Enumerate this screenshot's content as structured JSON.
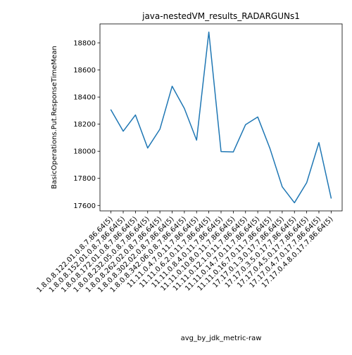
{
  "chart_data": {
    "type": "line",
    "title": "java-nestedVM_results_RADARGUNs1",
    "xlabel": "avg_by_jdk_metric-raw",
    "ylabel": "BasicOperations.Put.ResponseTimeMean",
    "categories": [
      "1.8.0.8.122.01.0.8.7.86.64(5)",
      "1.8.0.8.152.01.0.8.7.86.64(5)",
      "1.8.0.8.172.01.0.8.7.86.64(5)",
      "1.8.0.8.232.05.0.8.7.86.64(5)",
      "1.8.0.8.262.02.0.8.7.86.64(5)",
      "1.8.0.8.302.02.0.8.7.86.64(5)",
      "1.8.0.8.342.06.0.8.7.86.64(5)",
      "11.11.0.4.7.0.11.7.86.64(5)",
      "11.11.0.6.2.0.11.7.86.64(5)",
      "11.11.0.8.4.0.11.7.86.64(5)",
      "11.11.0.10.8.0.11.7.86.64(5)",
      "11.11.0.12.1.0.11.7.86.64(5)",
      "11.11.0.14.7.0.11.7.86.64(5)",
      "11.11.0.16.7.0.11.7.86.64(5)",
      "17.17.0.1.3.0.17.7.86.64(5)",
      "17.17.0.3.5.0.17.7.86.64(5)",
      "17.17.0.4.5.0.17.7.86.64(5)",
      "17.17.0.4.7.0.17.7.86.64(5)",
      "17.17.0.4.8.0.17.7.86.64(5)"
    ],
    "series": [
      {
        "values": [
          18305,
          18148,
          18268,
          18024,
          18163,
          18480,
          18316,
          18082,
          18880,
          17998,
          17995,
          18196,
          18253,
          18020,
          17738,
          17620,
          17768,
          18064,
          17655
        ]
      }
    ],
    "ylim": [
      17560,
      18940
    ],
    "yticks": [
      17600,
      17800,
      18000,
      18200,
      18400,
      18600,
      18800
    ],
    "grid": false,
    "line_color": "#1f77b4"
  }
}
